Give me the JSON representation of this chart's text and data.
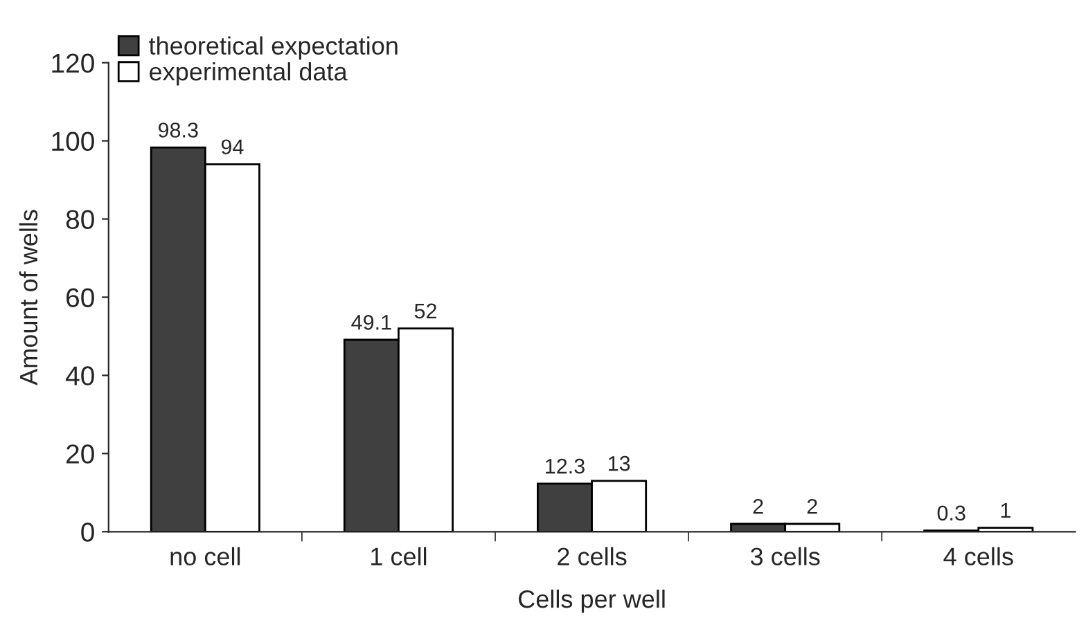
{
  "chart_data": {
    "type": "bar",
    "xlabel": "Cells per well",
    "ylabel": "Amount of wells",
    "categories": [
      "no cell",
      "1 cell",
      "2 cells",
      "3 cells",
      "4 cells"
    ],
    "series": [
      {
        "name": "theoretical expectation",
        "color": "#404040",
        "values": [
          98.3,
          49.1,
          12.3,
          2,
          0.3
        ]
      },
      {
        "name": "experimental data",
        "color": "#ffffff",
        "values": [
          94,
          52,
          13,
          2,
          1
        ]
      }
    ],
    "ylim": [
      0,
      120
    ],
    "yticks": [
      0,
      20,
      40,
      60,
      80,
      100,
      120
    ],
    "data_labels": true,
    "legend": "top left",
    "grid": false
  }
}
